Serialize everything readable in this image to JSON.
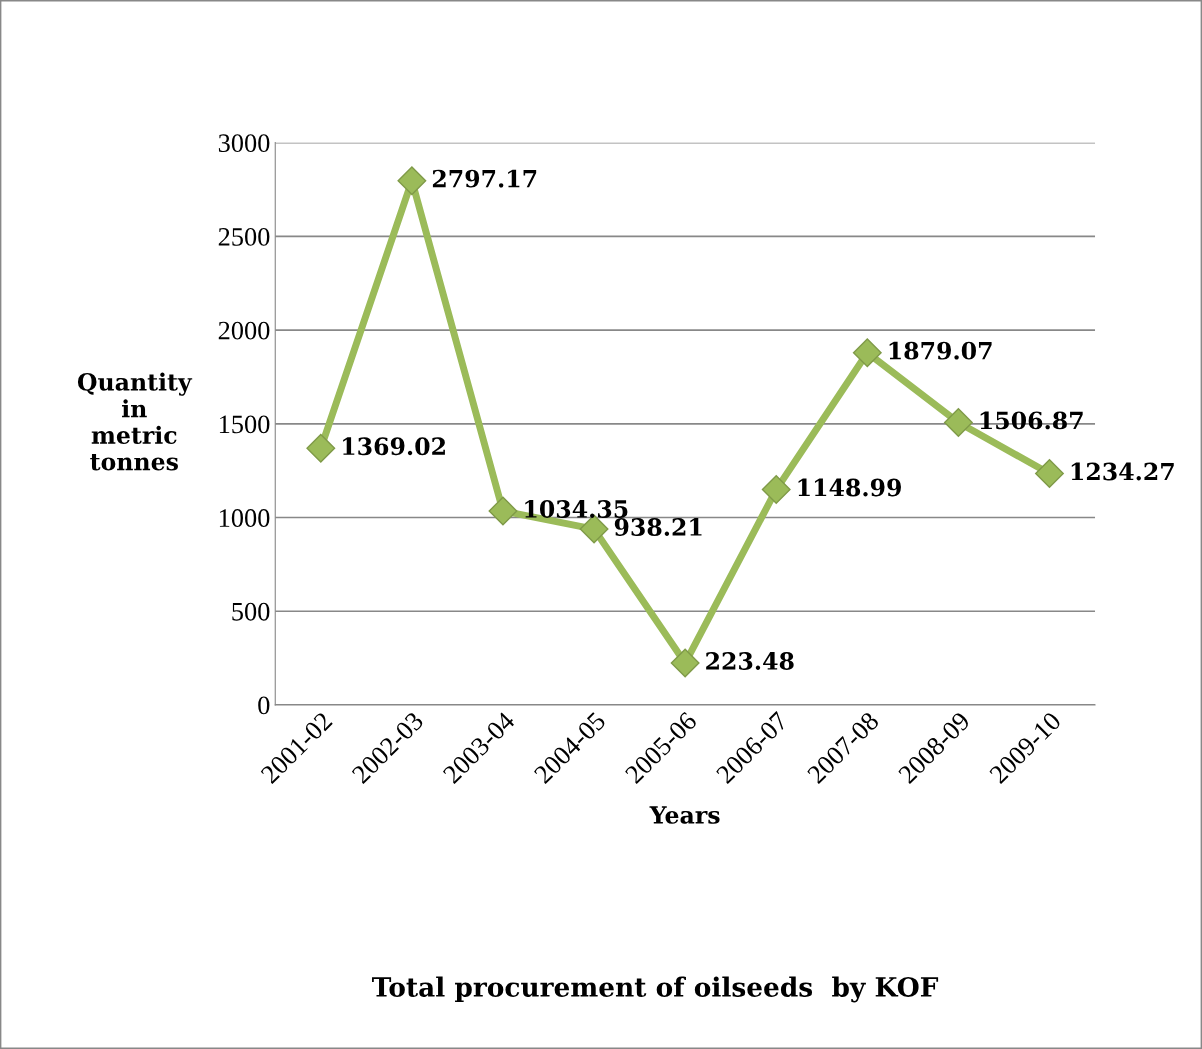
{
  "chart_data": {
    "type": "line",
    "title": "Total procurement of oilseeds  by KOF",
    "xlabel": "Years",
    "ylabel": "Quantity\nin\nmetric\ntonnes",
    "categories": [
      "2001-02",
      "2002-03",
      "2003-04",
      "2004-05",
      "2005-06",
      "2006-07",
      "2007-08",
      "2008-09",
      "2009-10"
    ],
    "series": [
      {
        "color": "#9bbb59",
        "values": [
          1369.02,
          2797.17,
          1034.35,
          938.21,
          223.48,
          1148.99,
          1879.07,
          1506.87,
          1234.27
        ]
      }
    ],
    "ylim": [
      0,
      3000
    ],
    "yticks": [
      0,
      500,
      1000,
      1500,
      2000,
      2500,
      3000
    ],
    "grid": "y",
    "marker": "diamond",
    "line_style": "solid",
    "data_labels": true,
    "legend": false
  }
}
